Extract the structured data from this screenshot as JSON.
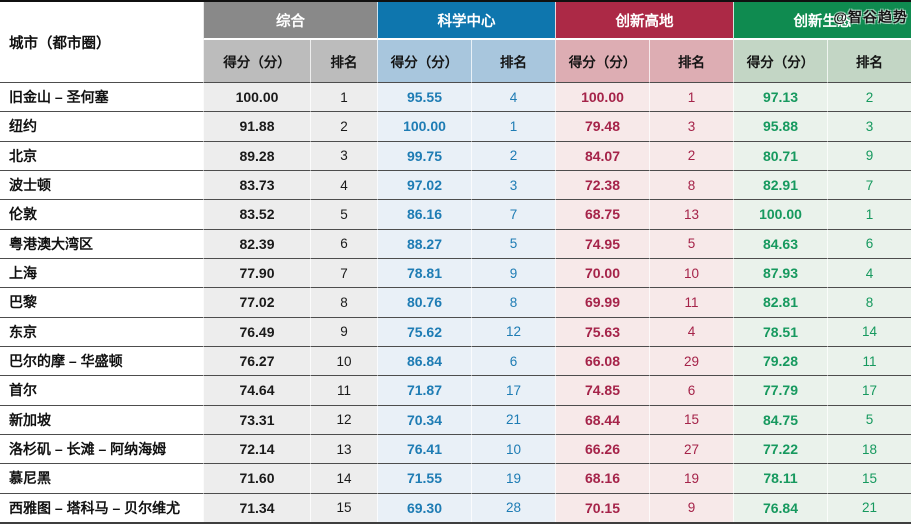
{
  "watermark": "@智谷趋势",
  "chart_data": {
    "type": "table",
    "city_header": "城市（都市圈）",
    "score_label": "得分（分）",
    "rank_label": "排名",
    "column_groups": [
      {
        "label": "综合",
        "colors": {
          "header": "#898989",
          "subheader": "#bcbcbc",
          "body": "#ededed",
          "text": "#1a1a1a"
        }
      },
      {
        "label": "科学中心",
        "colors": {
          "header": "#0e76ae",
          "subheader": "#a8c6dd",
          "body": "#e9f0f7",
          "text": "#1e7cb4"
        }
      },
      {
        "label": "创新高地",
        "colors": {
          "header": "#ac2946",
          "subheader": "#ddadb3",
          "body": "#f7e9e9",
          "text": "#a52349"
        }
      },
      {
        "label": "创新生态",
        "colors": {
          "header": "#0f8b50",
          "subheader": "#c3d6c5",
          "body": "#eaf2eb",
          "text": "#16995e"
        }
      }
    ],
    "rows": [
      {
        "city": "旧金山 – 圣何塞",
        "groups": [
          {
            "score": "100.00",
            "rank": "1"
          },
          {
            "score": "95.55",
            "rank": "4"
          },
          {
            "score": "100.00",
            "rank": "1"
          },
          {
            "score": "97.13",
            "rank": "2"
          }
        ]
      },
      {
        "city": "纽约",
        "groups": [
          {
            "score": "91.88",
            "rank": "2"
          },
          {
            "score": "100.00",
            "rank": "1"
          },
          {
            "score": "79.48",
            "rank": "3"
          },
          {
            "score": "95.88",
            "rank": "3"
          }
        ]
      },
      {
        "city": "北京",
        "groups": [
          {
            "score": "89.28",
            "rank": "3"
          },
          {
            "score": "99.75",
            "rank": "2"
          },
          {
            "score": "84.07",
            "rank": "2"
          },
          {
            "score": "80.71",
            "rank": "9"
          }
        ]
      },
      {
        "city": "波士顿",
        "groups": [
          {
            "score": "83.73",
            "rank": "4"
          },
          {
            "score": "97.02",
            "rank": "3"
          },
          {
            "score": "72.38",
            "rank": "8"
          },
          {
            "score": "82.91",
            "rank": "7"
          }
        ]
      },
      {
        "city": "伦敦",
        "groups": [
          {
            "score": "83.52",
            "rank": "5"
          },
          {
            "score": "86.16",
            "rank": "7"
          },
          {
            "score": "68.75",
            "rank": "13"
          },
          {
            "score": "100.00",
            "rank": "1"
          }
        ]
      },
      {
        "city": "粤港澳大湾区",
        "groups": [
          {
            "score": "82.39",
            "rank": "6"
          },
          {
            "score": "88.27",
            "rank": "5"
          },
          {
            "score": "74.95",
            "rank": "5"
          },
          {
            "score": "84.63",
            "rank": "6"
          }
        ]
      },
      {
        "city": "上海",
        "groups": [
          {
            "score": "77.90",
            "rank": "7"
          },
          {
            "score": "78.81",
            "rank": "9"
          },
          {
            "score": "70.00",
            "rank": "10"
          },
          {
            "score": "87.93",
            "rank": "4"
          }
        ]
      },
      {
        "city": "巴黎",
        "groups": [
          {
            "score": "77.02",
            "rank": "8"
          },
          {
            "score": "80.76",
            "rank": "8"
          },
          {
            "score": "69.99",
            "rank": "11"
          },
          {
            "score": "82.81",
            "rank": "8"
          }
        ]
      },
      {
        "city": "东京",
        "groups": [
          {
            "score": "76.49",
            "rank": "9"
          },
          {
            "score": "75.62",
            "rank": "12"
          },
          {
            "score": "75.63",
            "rank": "4"
          },
          {
            "score": "78.51",
            "rank": "14"
          }
        ]
      },
      {
        "city": "巴尔的摩 – 华盛顿",
        "groups": [
          {
            "score": "76.27",
            "rank": "10"
          },
          {
            "score": "86.84",
            "rank": "6"
          },
          {
            "score": "66.08",
            "rank": "29"
          },
          {
            "score": "79.28",
            "rank": "11"
          }
        ]
      },
      {
        "city": "首尔",
        "groups": [
          {
            "score": "74.64",
            "rank": "11"
          },
          {
            "score": "71.87",
            "rank": "17"
          },
          {
            "score": "74.85",
            "rank": "6"
          },
          {
            "score": "77.79",
            "rank": "17"
          }
        ]
      },
      {
        "city": "新加坡",
        "groups": [
          {
            "score": "73.31",
            "rank": "12"
          },
          {
            "score": "70.34",
            "rank": "21"
          },
          {
            "score": "68.44",
            "rank": "15"
          },
          {
            "score": "84.75",
            "rank": "5"
          }
        ]
      },
      {
        "city": "洛杉矶 – 长滩 – 阿纳海姆",
        "groups": [
          {
            "score": "72.14",
            "rank": "13"
          },
          {
            "score": "76.41",
            "rank": "10"
          },
          {
            "score": "66.26",
            "rank": "27"
          },
          {
            "score": "77.22",
            "rank": "18"
          }
        ]
      },
      {
        "city": "慕尼黑",
        "groups": [
          {
            "score": "71.60",
            "rank": "14"
          },
          {
            "score": "71.55",
            "rank": "19"
          },
          {
            "score": "68.16",
            "rank": "19"
          },
          {
            "score": "78.11",
            "rank": "15"
          }
        ]
      },
      {
        "city": "西雅图 – 塔科马 – 贝尔维尤",
        "groups": [
          {
            "score": "71.34",
            "rank": "15"
          },
          {
            "score": "69.30",
            "rank": "28"
          },
          {
            "score": "70.15",
            "rank": "9"
          },
          {
            "score": "76.84",
            "rank": "21"
          }
        ]
      }
    ]
  }
}
